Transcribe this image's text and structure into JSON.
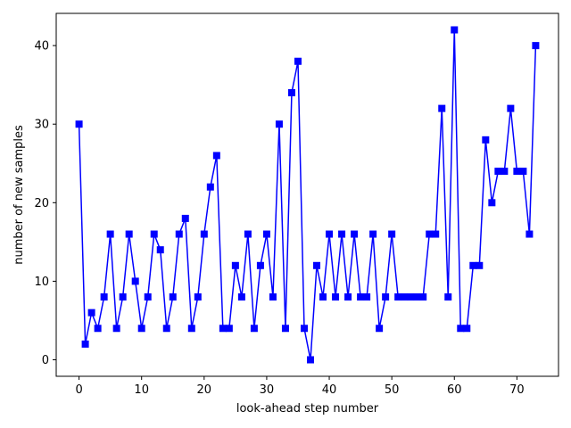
{
  "chart_data": {
    "type": "line",
    "title": "",
    "xlabel": "look-ahead step number",
    "ylabel": "number of new samples",
    "xlim": [
      -3.65,
      76.65
    ],
    "ylim": [
      -2.1,
      44.1
    ],
    "xticks": [
      0,
      10,
      20,
      30,
      40,
      50,
      60,
      70
    ],
    "yticks": [
      0,
      10,
      20,
      30,
      40
    ],
    "grid": false,
    "legend": "none",
    "series": [
      {
        "color": "#0000ff",
        "marker": "square",
        "x": [
          0,
          1,
          2,
          3,
          4,
          5,
          6,
          7,
          8,
          9,
          10,
          11,
          12,
          13,
          14,
          15,
          16,
          17,
          18,
          19,
          20,
          21,
          22,
          23,
          24,
          25,
          26,
          27,
          28,
          29,
          30,
          31,
          32,
          33,
          34,
          35,
          36,
          37,
          38,
          39,
          40,
          41,
          42,
          43,
          44,
          45,
          46,
          47,
          48,
          49,
          50,
          51,
          52,
          53,
          54,
          55,
          56,
          57,
          58,
          59,
          60,
          61,
          62,
          63,
          64,
          65,
          66,
          67,
          68,
          69,
          70,
          71,
          72,
          73
        ],
        "y": [
          30,
          2,
          6,
          4,
          8,
          16,
          4,
          8,
          16,
          10,
          4,
          8,
          16,
          14,
          4,
          8,
          16,
          18,
          4,
          8,
          16,
          22,
          26,
          4,
          4,
          12,
          8,
          16,
          4,
          12,
          16,
          8,
          30,
          4,
          34,
          38,
          4,
          0,
          12,
          8,
          16,
          8,
          16,
          8,
          16,
          8,
          8,
          16,
          4,
          8,
          16,
          8,
          8,
          8,
          8,
          8,
          16,
          16,
          32,
          8,
          42,
          4,
          4,
          12,
          12,
          28,
          20,
          24,
          24,
          32,
          24,
          24,
          16,
          40
        ]
      }
    ]
  }
}
